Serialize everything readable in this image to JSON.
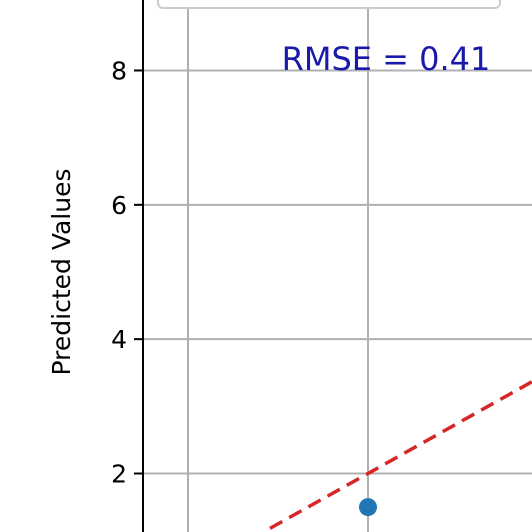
{
  "chart_data": {
    "type": "scatter",
    "title": "",
    "xlabel": "",
    "ylabel": "Predicted Values",
    "yticks": [
      2,
      4,
      6,
      8
    ],
    "xticks": [],
    "grid": true,
    "legend": "top (box partially visible, entries cropped)",
    "points": [
      {
        "x": 1,
        "y": 1.5
      }
    ],
    "reference_line": {
      "style": "dashed",
      "color": "#d62728",
      "start": {
        "x": 0.0,
        "y": 0.5
      },
      "end": {
        "x": 1.0,
        "y": 2.0
      }
    },
    "annotation": {
      "text": "RMSE = 0.41",
      "color": "#1a1aaa"
    },
    "point_color": "#1f77b4",
    "grid_color": "#b0b0b0"
  }
}
